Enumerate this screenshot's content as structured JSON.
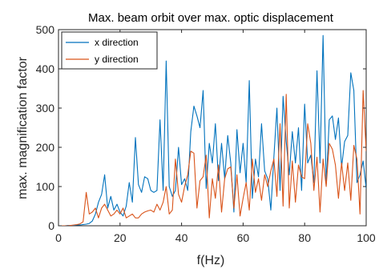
{
  "chart_data": {
    "type": "line",
    "title": "Max. beam orbit over max. optic displacement",
    "xlabel": "f(Hz)",
    "ylabel": "max. magnification factor",
    "xlim": [
      0,
      100
    ],
    "ylim": [
      0,
      500
    ],
    "xticks": [
      0,
      20,
      40,
      60,
      80,
      100
    ],
    "yticks": [
      0,
      100,
      200,
      300,
      400,
      500
    ],
    "grid": false,
    "legend_position": "top-left",
    "series": [
      {
        "name": "x direction",
        "color": "#0072BD",
        "x": [
          1,
          2,
          3,
          4,
          5,
          6,
          7,
          8,
          9,
          10,
          11,
          12,
          13,
          14,
          15,
          16,
          17,
          18,
          19,
          20,
          21,
          22,
          23,
          24,
          25,
          26,
          27,
          28,
          29,
          30,
          31,
          32,
          33,
          34,
          35,
          36,
          37,
          38,
          39,
          40,
          41,
          42,
          43,
          44,
          45,
          46,
          47,
          48,
          49,
          50,
          51,
          52,
          53,
          54,
          55,
          56,
          57,
          58,
          59,
          60,
          61,
          62,
          63,
          64,
          65,
          66,
          67,
          68,
          69,
          70,
          71,
          72,
          73,
          74,
          75,
          76,
          77,
          78,
          79,
          80,
          81,
          82,
          83,
          84,
          85,
          86,
          87,
          88,
          89,
          90,
          91,
          92,
          93,
          94,
          95,
          96,
          97,
          98,
          99,
          100
        ],
        "y": [
          0,
          0,
          1,
          1,
          1,
          2,
          2,
          3,
          4,
          6,
          12,
          30,
          60,
          80,
          130,
          45,
          75,
          40,
          55,
          35,
          25,
          50,
          110,
          60,
          225,
          105,
          85,
          125,
          120,
          90,
          85,
          90,
          270,
          90,
          420,
          100,
          75,
          90,
          200,
          105,
          120,
          90,
          240,
          305,
          280,
          250,
          345,
          95,
          210,
          160,
          260,
          115,
          210,
          120,
          230,
          160,
          35,
          245,
          135,
          210,
          110,
          370,
          70,
          170,
          125,
          260,
          140,
          120,
          40,
          175,
          300,
          90,
          330,
          215,
          130,
          240,
          160,
          250,
          90,
          310,
          160,
          180,
          110,
          395,
          160,
          485,
          105,
          270,
          280,
          220,
          275,
          150,
          215,
          230,
          390,
          345,
          110,
          130,
          165,
          95
        ]
      },
      {
        "name": "y direction",
        "color": "#D95319",
        "x": [
          1,
          2,
          3,
          4,
          5,
          6,
          7,
          8,
          9,
          10,
          11,
          12,
          13,
          14,
          15,
          16,
          17,
          18,
          19,
          20,
          21,
          22,
          23,
          24,
          25,
          26,
          27,
          28,
          29,
          30,
          31,
          32,
          33,
          34,
          35,
          36,
          37,
          38,
          39,
          40,
          41,
          42,
          43,
          44,
          45,
          46,
          47,
          48,
          49,
          50,
          51,
          52,
          53,
          54,
          55,
          56,
          57,
          58,
          59,
          60,
          61,
          62,
          63,
          64,
          65,
          66,
          67,
          68,
          69,
          70,
          71,
          72,
          73,
          74,
          75,
          76,
          77,
          78,
          79,
          80,
          81,
          82,
          83,
          84,
          85,
          86,
          87,
          88,
          89,
          90,
          91,
          92,
          93,
          94,
          95,
          96,
          97,
          98,
          99,
          100
        ],
        "y": [
          0,
          0,
          0,
          1,
          2,
          3,
          5,
          10,
          85,
          30,
          35,
          45,
          20,
          45,
          55,
          40,
          25,
          30,
          40,
          30,
          45,
          20,
          25,
          30,
          20,
          20,
          30,
          35,
          38,
          40,
          35,
          55,
          40,
          60,
          100,
          30,
          40,
          170,
          80,
          60,
          100,
          130,
          190,
          185,
          45,
          115,
          125,
          180,
          20,
          120,
          70,
          155,
          35,
          120,
          145,
          150,
          45,
          130,
          25,
          70,
          110,
          40,
          170,
          85,
          120,
          65,
          130,
          100,
          140,
          170,
          75,
          260,
          50,
          335,
          45,
          165,
          60,
          155,
          125,
          120,
          260,
          210,
          90,
          175,
          35,
          170,
          100,
          210,
          195,
          155,
          70,
          160,
          90,
          160,
          65,
          205,
          170,
          30,
          345,
          190
        ]
      }
    ]
  }
}
